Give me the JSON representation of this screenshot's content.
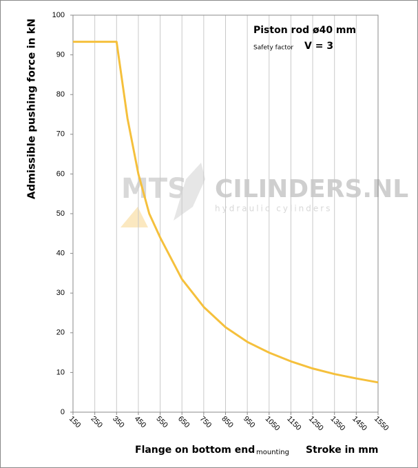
{
  "chart_data": {
    "type": "line",
    "annotations": [
      "Piston rod ø40 mm",
      "Safety factor",
      "V = 3"
    ],
    "watermark": [
      "MTS",
      "CILINDERS.NL",
      "hydraulic cylinders"
    ],
    "ylabel": "Admissible pushing  force in kN",
    "xlabel": [
      "Flange on bottom end",
      "mounting",
      "Stroke in mm"
    ],
    "x": [
      150,
      250,
      350,
      400,
      450,
      500,
      550,
      650,
      750,
      850,
      950,
      1050,
      1150,
      1250,
      1350,
      1450,
      1550
    ],
    "series": [
      {
        "name": "Admissible pushing force",
        "color": "#f5c03c",
        "values": [
          93.3,
          93.3,
          93.3,
          74,
          60,
          50,
          44,
          33.5,
          26.5,
          21.4,
          17.7,
          15,
          12.8,
          11,
          9.6,
          8.5,
          7.5
        ]
      }
    ],
    "xlim": [
      150,
      1550
    ],
    "ylim": [
      0,
      100
    ],
    "xticks": [
      150,
      250,
      350,
      450,
      550,
      650,
      750,
      850,
      950,
      1050,
      1150,
      1250,
      1350,
      1450,
      1550
    ],
    "yticks": [
      0,
      10,
      20,
      30,
      40,
      50,
      60,
      70,
      80,
      90,
      100
    ],
    "grid": "x"
  }
}
